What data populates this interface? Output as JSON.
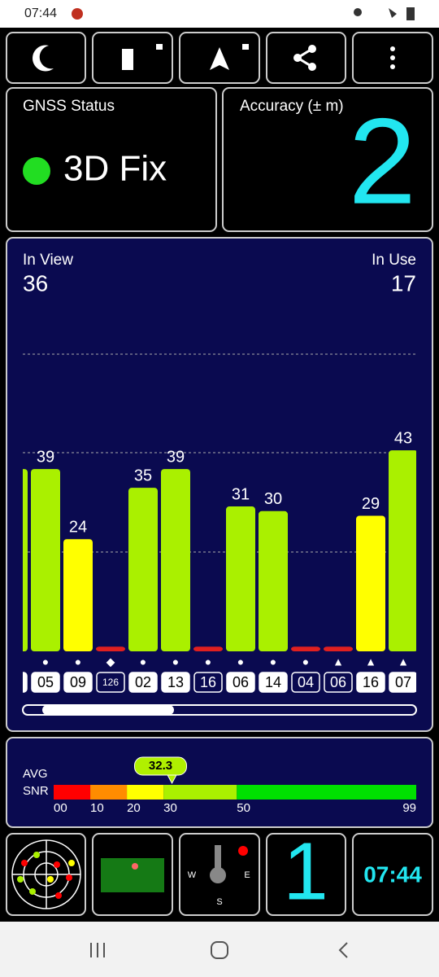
{
  "status_bar": {
    "time": "07:44"
  },
  "gnss_status": {
    "title": "GNSS Status",
    "fix": "3D Fix"
  },
  "accuracy": {
    "title": "Accuracy (± m)",
    "value": 2
  },
  "satellites": {
    "in_view_label": "In View",
    "in_view": 36,
    "in_use_label": "In Use",
    "in_use": 17,
    "chart_data": {
      "type": "bar",
      "categories": [
        null,
        "05",
        "09",
        "126",
        "02",
        "13",
        "16",
        "06",
        "14",
        "04",
        "06",
        "16",
        "07"
      ],
      "markers": [
        null,
        "●",
        "●",
        "◆",
        "●",
        "●",
        "●",
        "●",
        "●",
        "●",
        "▲",
        "▲",
        "▲"
      ],
      "in_use": [
        true,
        true,
        true,
        false,
        true,
        true,
        false,
        true,
        true,
        false,
        false,
        true,
        true
      ],
      "values": [
        39,
        39,
        24,
        1,
        35,
        39,
        1,
        31,
        30,
        1,
        1,
        29,
        43
      ],
      "value_labels": [
        null,
        "39",
        "24",
        null,
        "35",
        "39",
        null,
        "31",
        "30",
        null,
        null,
        "29",
        "43"
      ],
      "colors": [
        "#aaf000",
        "#aaf000",
        "#ffff00",
        "#e02020",
        "#aaf000",
        "#aaf000",
        "#e02020",
        "#aaf000",
        "#aaf000",
        "#e02020",
        "#e02020",
        "#ffff00",
        "#aaf000"
      ]
    }
  },
  "snr": {
    "chart_data": {
      "type": "gauge",
      "labels": [
        "AVG",
        "SNR"
      ],
      "value": 32.3,
      "xlim": [
        0,
        99
      ],
      "xticks": [
        {
          "value": 0,
          "label": "00"
        },
        10,
        20,
        30,
        50,
        99
      ],
      "bands": [
        {
          "from": 0,
          "to": 10,
          "color": "#ff0000"
        },
        {
          "from": 10,
          "to": 20,
          "color": "#ff8c00"
        },
        {
          "from": 20,
          "to": 30,
          "color": "#ffff00"
        },
        {
          "from": 30,
          "to": 50,
          "color": "#aaf000"
        },
        {
          "from": 50,
          "to": 99,
          "color": "#00e000"
        }
      ],
      "marker_color": "#b0f000"
    }
  },
  "tiles": {
    "count": 1,
    "time": "07:44",
    "compass": [
      "W",
      "E",
      "S"
    ]
  }
}
